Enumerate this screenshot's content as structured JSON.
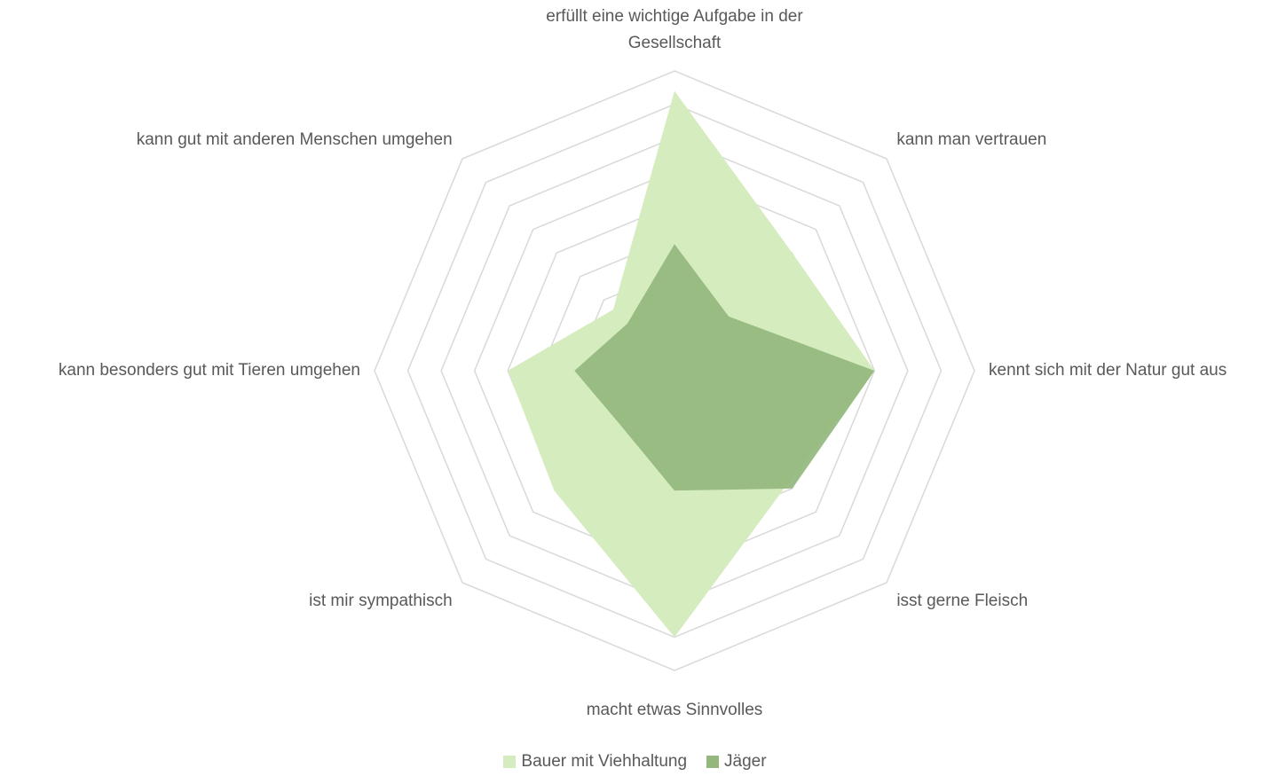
{
  "chart_data": {
    "type": "radar",
    "categories": [
      "erfüllt eine wichtige Aufgabe in der Gesellschaft",
      "kann man vertrauen",
      "kennt sich mit der Natur gut aus",
      "isst gerne Fleisch",
      "macht etwas Sinnvolles",
      "ist mir sympathisch",
      "kann besonders gut mit Tieren umgehen",
      "kann gut mit anderen Menschen umgehen"
    ],
    "series": [
      {
        "name": "Bauer mit Viehhaltung",
        "color": "#d5ecbf",
        "values": [
          8.4,
          5.0,
          6.0,
          4.8,
          8.0,
          5.1,
          5.0,
          2.6
        ]
      },
      {
        "name": "Jäger",
        "color": "#93b77d",
        "values": [
          3.8,
          2.3,
          6.0,
          5.0,
          3.6,
          2.3,
          3.0,
          2.0
        ]
      }
    ],
    "ylim": [
      0,
      9
    ],
    "yticks": [
      1,
      2,
      3,
      4,
      5,
      6,
      7,
      8,
      9
    ],
    "grid": true,
    "legend": "bottom"
  }
}
